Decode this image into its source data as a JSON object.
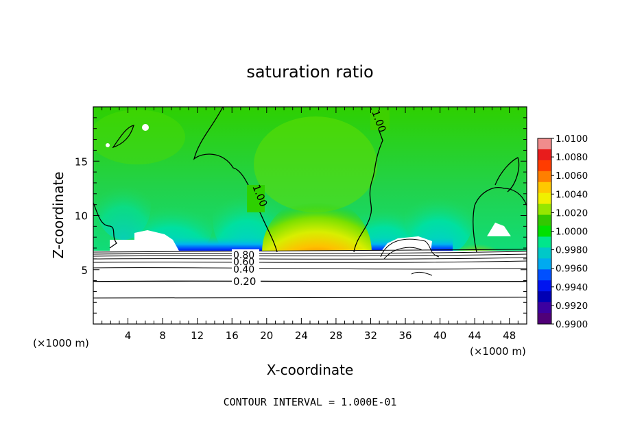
{
  "chart_data": {
    "type": "heatmap",
    "title": "saturation ratio",
    "xlabel": "X-coordinate",
    "ylabel": "Z-coordinate",
    "x_unit": "(×1000 m)",
    "x_unit_right": "(×1000 m)",
    "xlim": [
      0,
      50
    ],
    "ylim": [
      0,
      20
    ],
    "xticks": [
      4,
      8,
      12,
      16,
      20,
      24,
      28,
      32,
      36,
      40,
      44,
      48
    ],
    "yticks": [
      5,
      10,
      15
    ],
    "footer": "CONTOUR INTERVAL = 1.000E-01",
    "colorbar": {
      "min": 0.99,
      "max": 1.01,
      "labels": [
        "1.0100",
        "1.0080",
        "1.0060",
        "1.0040",
        "1.0020",
        "1.0000",
        "0.9980",
        "0.9960",
        "0.9940",
        "0.9920",
        "0.9900"
      ],
      "colors": [
        "#f08c8c",
        "#e81c1c",
        "#ff3c00",
        "#ff7f00",
        "#ffc800",
        "#f0f000",
        "#96e600",
        "#32c800",
        "#00e000",
        "#00e68c",
        "#00c8c8",
        "#00aaf0",
        "#0050ff",
        "#0014f0",
        "#0000b4",
        "#3c00a0",
        "#500078"
      ]
    },
    "contour_labels": [
      {
        "text": "1.00",
        "x": 27.2,
        "z": 18.5
      },
      {
        "text": "1.00",
        "x": 15.3,
        "z": 11.4
      },
      {
        "text": "0.80",
        "x": 15.8,
        "z": 6.3
      },
      {
        "text": "0.60",
        "x": 15.8,
        "z": 5.8
      },
      {
        "text": "0.40",
        "x": 15.8,
        "z": 5.0
      },
      {
        "text": "0.20",
        "x": 15.8,
        "z": 3.8
      }
    ]
  }
}
